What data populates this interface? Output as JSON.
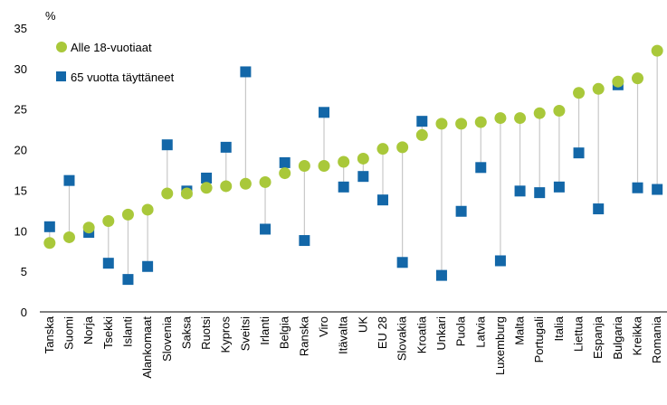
{
  "chart_data": {
    "type": "scatter",
    "unit_label": "%",
    "ylim": [
      0,
      35
    ],
    "yticks": [
      0,
      5,
      10,
      15,
      20,
      25,
      30,
      35
    ],
    "grid": false,
    "legend_position": "top-left",
    "categories": [
      "Tanska",
      "Suomi",
      "Norja",
      "Tsekki",
      "Islanti",
      "Alankomaat",
      "Slovenia",
      "Saksa",
      "Ruotsi",
      "Kypros",
      "Sveitsi",
      "Irlanti",
      "Belgia",
      "Ranska",
      "Viro",
      "Itävalta",
      "UK",
      "EU 28",
      "Slovakia",
      "Kroatia",
      "Unkari",
      "Puola",
      "Latvia",
      "Luxemburg",
      "Malta",
      "Portugali",
      "Italia",
      "Liettua",
      "Espanja",
      "Bulgaria",
      "Kreikka",
      "Romania"
    ],
    "series": [
      {
        "name": "Alle 18-vuotiaat",
        "marker": "circle",
        "color": "#a9c83a",
        "values": [
          8.5,
          9.2,
          10.4,
          11.2,
          12.0,
          12.6,
          14.6,
          14.6,
          15.3,
          15.5,
          15.8,
          16.0,
          17.1,
          18.0,
          18.0,
          18.5,
          18.9,
          20.1,
          20.3,
          21.8,
          23.2,
          23.2,
          23.4,
          23.9,
          23.9,
          24.5,
          24.8,
          27.0,
          27.5,
          28.4,
          28.8,
          32.2
        ]
      },
      {
        "name": "65 vuotta täyttäneet",
        "marker": "square",
        "color": "#1367a8",
        "values": [
          10.5,
          16.2,
          9.8,
          6.0,
          4.0,
          5.6,
          20.6,
          14.9,
          16.5,
          20.3,
          29.6,
          10.2,
          18.4,
          8.8,
          24.6,
          15.4,
          16.7,
          13.8,
          6.1,
          23.5,
          4.5,
          12.4,
          17.8,
          6.3,
          14.9,
          14.7,
          15.4,
          19.6,
          12.7,
          28.0,
          15.3,
          15.1
        ]
      }
    ],
    "connector_color": "#c8c8c8",
    "axis_color": "#000000"
  }
}
